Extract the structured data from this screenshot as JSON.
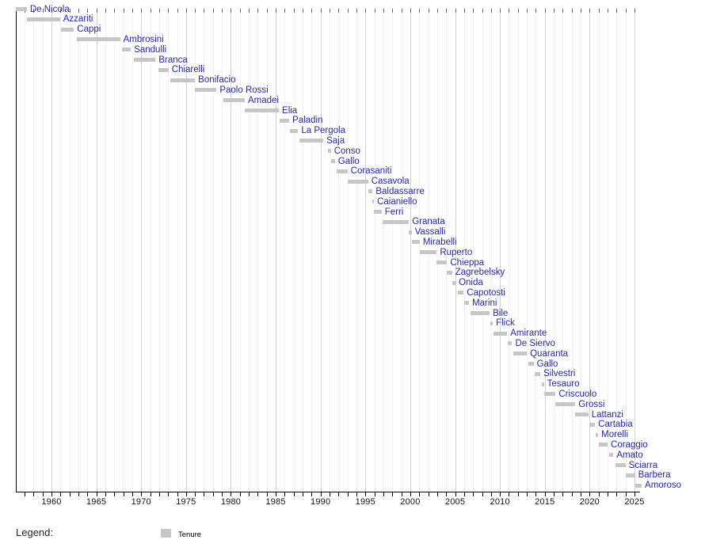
{
  "legend": {
    "title": "Legend:",
    "items": [
      {
        "label": "Tenure",
        "color": "#c6c6c6"
      }
    ]
  },
  "chart_data": {
    "type": "bar",
    "subtype": "gantt-timeline",
    "title": "",
    "xlabel": "",
    "ylabel": "",
    "grid": true,
    "legend_position": "bottom-left",
    "bar_color": "#c6c6c6",
    "label_color": "#2727ad",
    "grid_major_color": "#d0d0d0",
    "grid_minor_color": "#f1f1f1",
    "axis_color": "#000000",
    "top_tick_color": "#666666",
    "x_axis": {
      "min": 1956.05,
      "max": 2025.6,
      "major_tick_interval": 5,
      "minor_tick_interval": 1,
      "tick_labels": [
        "1960",
        "1965",
        "1970",
        "1975",
        "1980",
        "1985",
        "1990",
        "1995",
        "2000",
        "2005",
        "2010",
        "2015",
        "2020",
        "2025"
      ]
    },
    "series": [
      {
        "name": "De Nicola",
        "start": 1956.0,
        "end": 1957.25
      },
      {
        "name": "Azzariti",
        "start": 1957.25,
        "end": 1960.95
      },
      {
        "name": "Cappi",
        "start": 1961.05,
        "end": 1962.5
      },
      {
        "name": "Ambrosini",
        "start": 1962.8,
        "end": 1967.65
      },
      {
        "name": "Sandulli",
        "start": 1967.85,
        "end": 1968.85
      },
      {
        "name": "Branca",
        "start": 1969.2,
        "end": 1971.6
      },
      {
        "name": "Chiarelli",
        "start": 1971.9,
        "end": 1973.05
      },
      {
        "name": "Bonifacio",
        "start": 1973.25,
        "end": 1976.0
      },
      {
        "name": "Paolo Rossi",
        "start": 1976.0,
        "end": 1978.4
      },
      {
        "name": "Amadei",
        "start": 1979.2,
        "end": 1981.55
      },
      {
        "name": "Elia",
        "start": 1981.55,
        "end": 1985.35
      },
      {
        "name": "Paladin",
        "start": 1985.45,
        "end": 1986.5
      },
      {
        "name": "La Pergola",
        "start": 1986.6,
        "end": 1987.5
      },
      {
        "name": "Saja",
        "start": 1987.6,
        "end": 1990.3
      },
      {
        "name": "Conso",
        "start": 1990.85,
        "end": 1991.15
      },
      {
        "name": "Gallo",
        "start": 1991.2,
        "end": 1991.6
      },
      {
        "name": "Corasaniti",
        "start": 1991.75,
        "end": 1993.0
      },
      {
        "name": "Casavola",
        "start": 1993.0,
        "end": 1995.3
      },
      {
        "name": "Baldassarre",
        "start": 1995.3,
        "end": 1995.8
      },
      {
        "name": "Caianiello",
        "start": 1995.8,
        "end": 1995.95
      },
      {
        "name": "Ferri",
        "start": 1995.95,
        "end": 1996.8
      },
      {
        "name": "Granata",
        "start": 1996.95,
        "end": 1999.85
      },
      {
        "name": "Vassalli",
        "start": 1999.85,
        "end": 2000.15
      },
      {
        "name": "Mirabelli",
        "start": 2000.15,
        "end": 2001.05
      },
      {
        "name": "Ruperto",
        "start": 2001.05,
        "end": 2002.95
      },
      {
        "name": "Chieppa",
        "start": 2002.95,
        "end": 2004.1
      },
      {
        "name": "Zagrebelsky",
        "start": 2004.1,
        "end": 2004.65
      },
      {
        "name": "Onida",
        "start": 2004.7,
        "end": 2005.05
      },
      {
        "name": "Capotosti",
        "start": 2005.3,
        "end": 2005.95
      },
      {
        "name": "Marini",
        "start": 2006.0,
        "end": 2006.55
      },
      {
        "name": "Bile",
        "start": 2006.7,
        "end": 2008.85
      },
      {
        "name": "Flick",
        "start": 2008.9,
        "end": 2009.2
      },
      {
        "name": "Amirante",
        "start": 2009.3,
        "end": 2010.8
      },
      {
        "name": "De Siervo",
        "start": 2010.9,
        "end": 2011.35
      },
      {
        "name": "Quaranta",
        "start": 2011.45,
        "end": 2013.0
      },
      {
        "name": "Gallo",
        "start": 2013.2,
        "end": 2013.75
      },
      {
        "name": "Silvestri",
        "start": 2013.85,
        "end": 2014.5
      },
      {
        "name": "Tesauro",
        "start": 2014.65,
        "end": 2014.9
      },
      {
        "name": "Criscuolo",
        "start": 2014.95,
        "end": 2016.2
      },
      {
        "name": "Grossi",
        "start": 2016.2,
        "end": 2018.4
      },
      {
        "name": "Lattanzi",
        "start": 2018.4,
        "end": 2019.85
      },
      {
        "name": "Cartabia",
        "start": 2019.95,
        "end": 2020.6
      },
      {
        "name": "Morelli",
        "start": 2020.7,
        "end": 2020.95
      },
      {
        "name": "Coraggio",
        "start": 2021.0,
        "end": 2022.0
      },
      {
        "name": "Amato",
        "start": 2022.15,
        "end": 2022.65
      },
      {
        "name": "Sciarra",
        "start": 2022.9,
        "end": 2024.0
      },
      {
        "name": "Barbera",
        "start": 2024.0,
        "end": 2025.05
      },
      {
        "name": "Amoroso",
        "start": 2025.05,
        "end": 2025.8
      }
    ]
  }
}
